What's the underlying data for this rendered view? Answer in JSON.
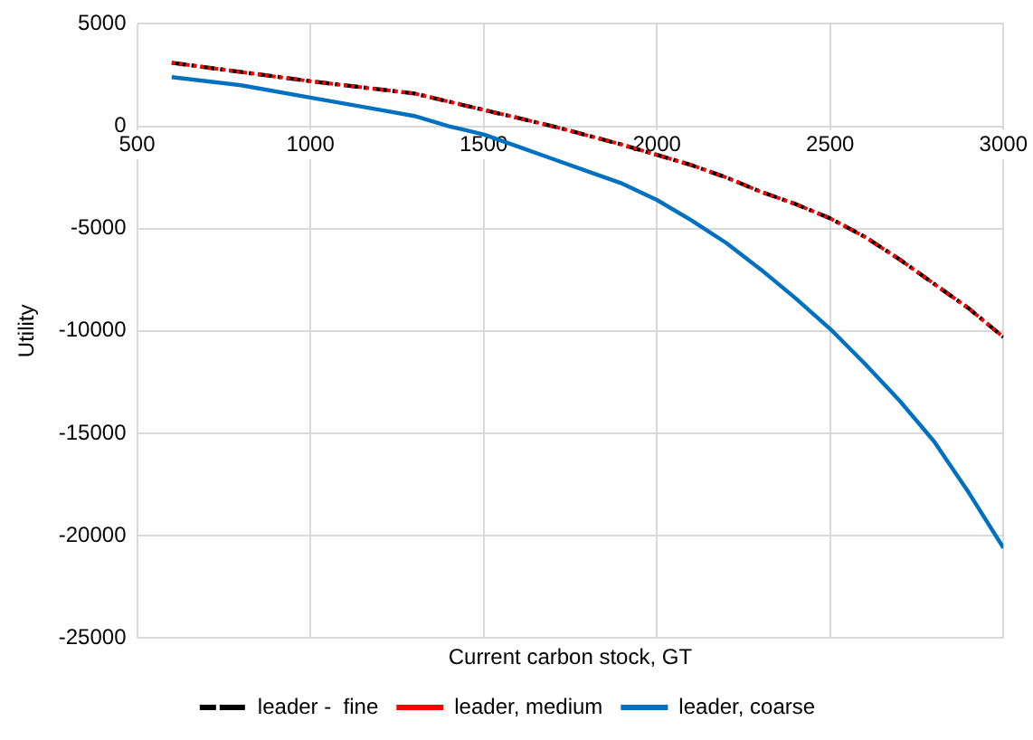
{
  "chart_data": {
    "type": "line",
    "xlabel": "Current carbon stock, GT",
    "ylabel": "Utility",
    "xlim": [
      500,
      3000
    ],
    "xticks": [
      500,
      1000,
      1500,
      2000,
      2500,
      3000
    ],
    "ylim": [
      -25000,
      5000
    ],
    "yticks": [
      -25000,
      -20000,
      -15000,
      -10000,
      -5000,
      0,
      5000
    ],
    "grid": true,
    "legend": "bottom",
    "marker": "none",
    "series": [
      {
        "name": "leader -  fine",
        "color": "#000000",
        "line_style": "dashed",
        "x": [
          600,
          1000,
          1300,
          1500,
          1700,
          1900,
          2000,
          2100,
          2200,
          2300,
          2400,
          2500,
          2600,
          2700,
          2800,
          2900,
          3000
        ],
        "values": [
          3100,
          2200,
          1600,
          800,
          0,
          -900,
          -1400,
          -1900,
          -2500,
          -3200,
          -3800,
          -4500,
          -5400,
          -6500,
          -7700,
          -8900,
          -10300
        ]
      },
      {
        "name": "leader, medium",
        "color": "#ff0000",
        "line_style": "dotted",
        "x": [
          600,
          1000,
          1300,
          1500,
          1700,
          1900,
          2000,
          2100,
          2200,
          2300,
          2400,
          2500,
          2600,
          2700,
          2800,
          2900,
          3000
        ],
        "values": [
          3100,
          2200,
          1600,
          800,
          0,
          -900,
          -1400,
          -1900,
          -2500,
          -3200,
          -3800,
          -4500,
          -5400,
          -6500,
          -7700,
          -8900,
          -10300
        ]
      },
      {
        "name": "leader, coarse",
        "color": "#0070c0",
        "line_style": "solid",
        "x": [
          600,
          800,
          1000,
          1200,
          1300,
          1400,
          1500,
          1600,
          1700,
          1800,
          1900,
          2000,
          2100,
          2200,
          2300,
          2400,
          2500,
          2600,
          2700,
          2800,
          2900,
          3000
        ],
        "values": [
          2400,
          2000,
          1400,
          800,
          500,
          0,
          -400,
          -1000,
          -1600,
          -2200,
          -2800,
          -3600,
          -4600,
          -5700,
          -7000,
          -8400,
          -9900,
          -11600,
          -13400,
          -15400,
          -17900,
          -20600
        ]
      }
    ]
  }
}
